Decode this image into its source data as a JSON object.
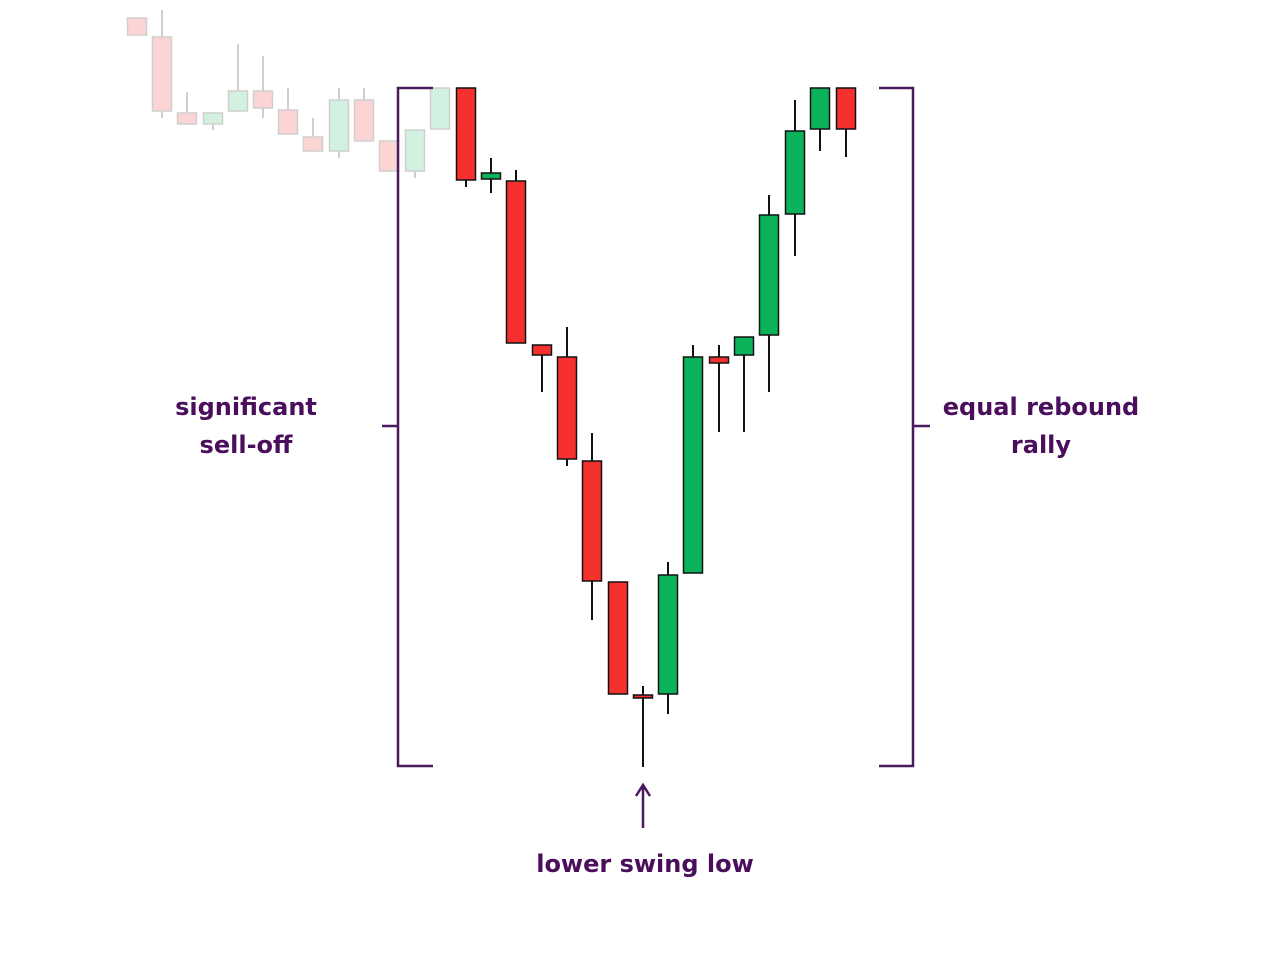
{
  "labels": {
    "sell_off": {
      "lines": [
        "significant",
        "sell-off"
      ]
    },
    "rebound": {
      "lines": [
        "equal rebound",
        "rally"
      ]
    },
    "swing_low": {
      "text": "lower swing low"
    }
  }
}
